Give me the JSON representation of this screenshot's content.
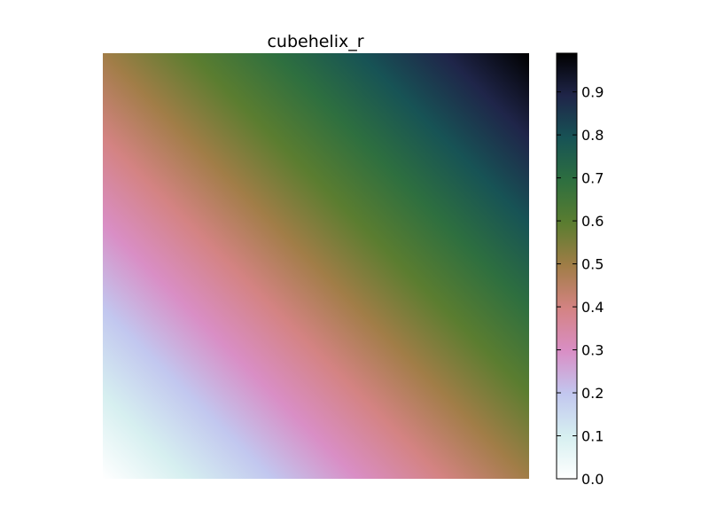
{
  "chart_data": {
    "type": "heatmap",
    "title": "cubehelix_r",
    "colormap": "cubehelix_r",
    "xlabel": "",
    "ylabel": "",
    "axes_visible": false,
    "grid": false,
    "field": "value increases linearly from bottom-left (0.0) to top-right (~1.0)",
    "value_range": [
      0.0,
      1.0
    ],
    "colorbar": {
      "placement": "right",
      "ticks": [
        "0.0",
        "0.1",
        "0.2",
        "0.3",
        "0.4",
        "0.5",
        "0.6",
        "0.7",
        "0.8",
        "0.9"
      ],
      "tick_values": [
        0.0,
        0.1,
        0.2,
        0.3,
        0.4,
        0.5,
        0.6,
        0.7,
        0.8,
        0.9
      ],
      "range": [
        0.0,
        0.99
      ]
    },
    "colorstops": [
      {
        "value": 0.0,
        "color": "#ffffff"
      },
      {
        "value": 0.1,
        "color": "#d6eff0"
      },
      {
        "value": 0.2,
        "color": "#c2c7ef"
      },
      {
        "value": 0.3,
        "color": "#d98ec5"
      },
      {
        "value": 0.4,
        "color": "#d48383"
      },
      {
        "value": 0.5,
        "color": "#a17d47"
      },
      {
        "value": 0.6,
        "color": "#5b7d30"
      },
      {
        "value": 0.7,
        "color": "#2e6f3f"
      },
      {
        "value": 0.8,
        "color": "#175355"
      },
      {
        "value": 0.9,
        "color": "#1f2549"
      },
      {
        "value": 1.0,
        "color": "#000000"
      }
    ]
  }
}
